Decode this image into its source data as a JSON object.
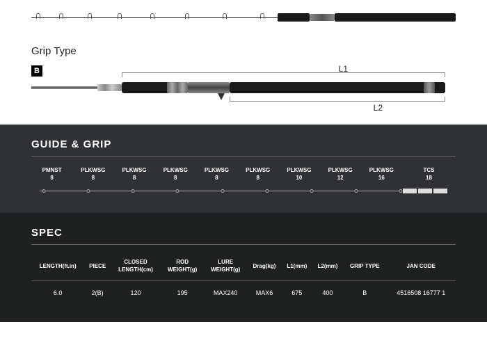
{
  "grip_type_label": "Grip Type",
  "b_marker": "B",
  "l1_label": "L1",
  "l2_label": "L2",
  "guide_grip": {
    "title": "GUIDE & GRIP",
    "columns": [
      {
        "name": "PMNST",
        "size": "8"
      },
      {
        "name": "PLKWSG",
        "size": "8"
      },
      {
        "name": "PLKWSG",
        "size": "8"
      },
      {
        "name": "PLKWSG",
        "size": "8"
      },
      {
        "name": "PLKWSG",
        "size": "8"
      },
      {
        "name": "PLKWSG",
        "size": "8"
      },
      {
        "name": "PLKWSG",
        "size": "10"
      },
      {
        "name": "PLKWSG",
        "size": "12"
      },
      {
        "name": "PLKWSG",
        "size": "16"
      },
      {
        "name": "TCS",
        "size": "18"
      }
    ],
    "dot_positions_pct": [
      3,
      13.5,
      24,
      34.5,
      45,
      55.5,
      66,
      76.5,
      87
    ]
  },
  "spec": {
    "title": "SPEC",
    "headers": [
      "LENGTH(ft.in)",
      "PIECE",
      "CLOSED\nLENGTH(cm)",
      "ROD\nWEIGHT(g)",
      "LURE\nWEIGHT(g)",
      "Drag(kg)",
      "L1(mm)",
      "L2(mm)",
      "GRIP TYPE",
      "JAN CODE"
    ],
    "row": [
      "6.0",
      "2(B)",
      "120",
      "195",
      "MAX240",
      "MAX6",
      "675",
      "400",
      "B",
      "4516508 16777 1"
    ]
  },
  "rod1_guide_positions_pct": [
    2,
    12,
    24,
    37,
    51,
    66,
    82,
    98
  ]
}
